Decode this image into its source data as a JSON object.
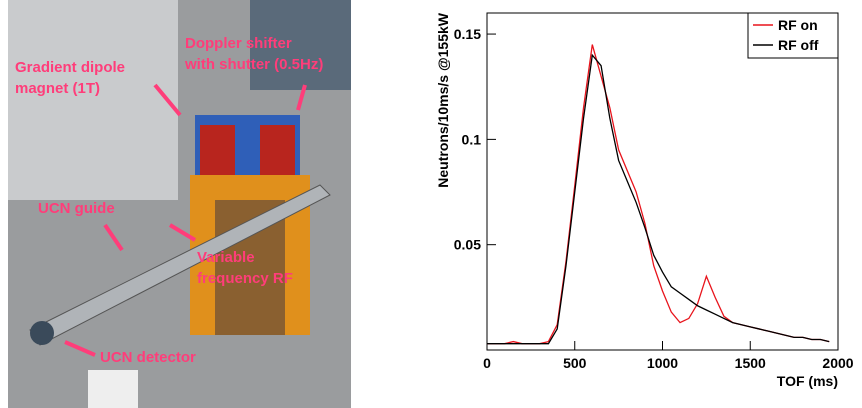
{
  "photo": {
    "annotations": [
      {
        "lines": [
          "Doppler shifter",
          "with shutter (0.5Hz)"
        ]
      },
      {
        "lines": [
          "Gradient dipole",
          "magnet (1T)"
        ]
      },
      {
        "lines": [
          "UCN guide"
        ]
      },
      {
        "lines": [
          "Variable",
          "frequency RF"
        ]
      },
      {
        "lines": [
          "UCN detector"
        ]
      }
    ]
  },
  "chart_data": {
    "type": "line",
    "x_label": "TOF (ms)",
    "y_label": "Neutrons/10ms/s @155kW",
    "x": [
      0,
      50,
      100,
      150,
      200,
      250,
      300,
      350,
      400,
      450,
      500,
      550,
      600,
      650,
      700,
      750,
      800,
      850,
      900,
      950,
      1000,
      1050,
      1100,
      1150,
      1200,
      1250,
      1300,
      1350,
      1400,
      1450,
      1500,
      1550,
      1600,
      1650,
      1700,
      1750,
      1800,
      1850,
      1900,
      1950
    ],
    "series": [
      {
        "name": "RF on",
        "color": "#e8141c",
        "values": [
          0.003,
          0.003,
          0.003,
          0.004,
          0.003,
          0.003,
          0.003,
          0.004,
          0.012,
          0.042,
          0.078,
          0.115,
          0.145,
          0.13,
          0.115,
          0.095,
          0.085,
          0.075,
          0.06,
          0.04,
          0.028,
          0.018,
          0.013,
          0.015,
          0.022,
          0.035,
          0.025,
          0.016,
          0.013,
          0.012,
          0.011,
          0.01,
          0.009,
          0.008,
          0.007,
          0.006,
          0.006,
          0.005,
          0.005,
          0.004
        ]
      },
      {
        "name": "RF off",
        "color": "#000000",
        "values": [
          0.003,
          0.003,
          0.003,
          0.003,
          0.003,
          0.003,
          0.003,
          0.003,
          0.01,
          0.04,
          0.075,
          0.11,
          0.14,
          0.135,
          0.11,
          0.09,
          0.08,
          0.07,
          0.058,
          0.045,
          0.037,
          0.03,
          0.027,
          0.024,
          0.021,
          0.019,
          0.017,
          0.015,
          0.013,
          0.012,
          0.011,
          0.01,
          0.009,
          0.008,
          0.007,
          0.006,
          0.006,
          0.005,
          0.005,
          0.004
        ]
      }
    ],
    "xlim": [
      0,
      2000
    ],
    "ylim": [
      0,
      0.16
    ],
    "xticks": [
      0,
      500,
      1000,
      1500,
      2000
    ],
    "yticks": [
      0.05,
      0.1,
      0.15
    ],
    "legend": "top-right"
  }
}
